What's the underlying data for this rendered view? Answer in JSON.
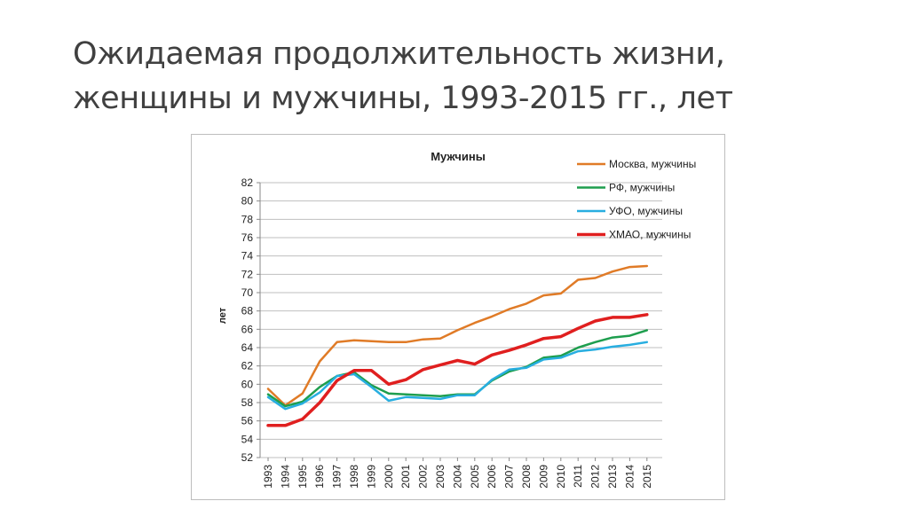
{
  "slide": {
    "title_line1": "Ожидаемая продолжительность жизни,",
    "title_line2": "женщины и мужчины, 1993-2015 гг., лет"
  },
  "chart_data": {
    "type": "line",
    "title": "Мужчины",
    "xlabel": "",
    "ylabel": "лет",
    "ylim": [
      52,
      82
    ],
    "yticks": [
      52,
      54,
      56,
      58,
      60,
      62,
      64,
      66,
      68,
      70,
      72,
      74,
      76,
      78,
      80,
      82
    ],
    "grid": true,
    "legend_position": "top-right",
    "x": [
      "1993",
      "1994",
      "1995",
      "1996",
      "1997",
      "1998",
      "1999",
      "2000",
      "2001",
      "2002",
      "2003",
      "2004",
      "2005",
      "2006",
      "2007",
      "2008",
      "2009",
      "2010",
      "2011",
      "2012",
      "2013",
      "2014",
      "2015"
    ],
    "series": [
      {
        "name": "Москва, мужчины",
        "color": "#E07B27",
        "width": 2.5,
        "values": [
          59.5,
          57.7,
          59.0,
          62.5,
          64.6,
          64.8,
          64.7,
          64.6,
          64.6,
          64.9,
          65.0,
          65.9,
          66.7,
          67.4,
          68.2,
          68.8,
          69.7,
          69.9,
          71.4,
          71.6,
          72.3,
          72.8,
          72.9
        ]
      },
      {
        "name": "РФ, мужчины",
        "color": "#1E9E4E",
        "width": 2.5,
        "values": [
          58.9,
          57.6,
          58.1,
          59.7,
          60.9,
          61.3,
          59.9,
          59.0,
          58.9,
          58.8,
          58.7,
          58.9,
          58.9,
          60.4,
          61.4,
          61.9,
          62.9,
          63.1,
          64.0,
          64.6,
          65.1,
          65.3,
          65.9
        ]
      },
      {
        "name": "УФО, мужчины",
        "color": "#28AEE0",
        "width": 2.5,
        "values": [
          58.6,
          57.3,
          57.9,
          59.1,
          60.9,
          61.1,
          59.7,
          58.2,
          58.6,
          58.5,
          58.4,
          58.8,
          58.8,
          60.5,
          61.6,
          61.8,
          62.7,
          62.9,
          63.6,
          63.8,
          64.1,
          64.3,
          64.6
        ]
      },
      {
        "name": "ХМАО, мужчины",
        "color": "#E01F1F",
        "width": 3.5,
        "values": [
          55.5,
          55.5,
          56.2,
          58.0,
          60.4,
          61.5,
          61.5,
          60.0,
          60.5,
          61.6,
          62.1,
          62.6,
          62.2,
          63.2,
          63.7,
          64.3,
          65.0,
          65.2,
          66.1,
          66.9,
          67.3,
          67.3,
          67.6
        ]
      }
    ]
  }
}
